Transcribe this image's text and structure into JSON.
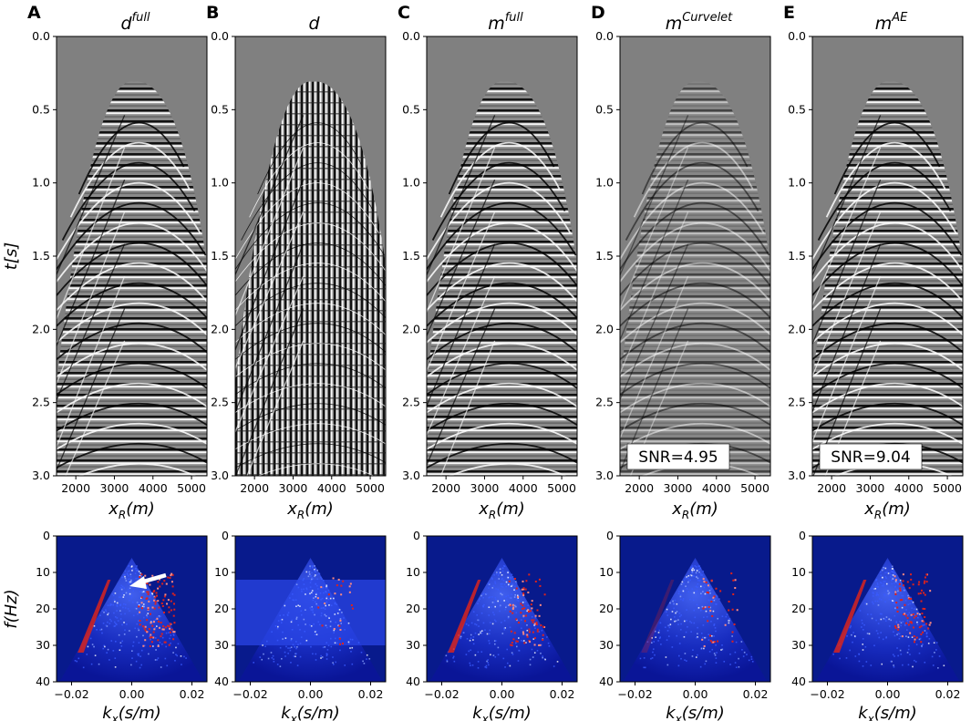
{
  "figure": {
    "panels": [
      {
        "letter": "A",
        "title_base": "d",
        "title_sup": "full",
        "snr": ""
      },
      {
        "letter": "B",
        "title_base": "d",
        "title_sup": "",
        "snr": ""
      },
      {
        "letter": "C",
        "title_base": "m",
        "title_sup": "full",
        "snr": ""
      },
      {
        "letter": "D",
        "title_base": "m",
        "title_sup": "Curvelet",
        "snr": "SNR=4.95"
      },
      {
        "letter": "E",
        "title_base": "m",
        "title_sup": "AE",
        "snr": "SNR=9.04"
      }
    ],
    "arrow_panel": "A"
  },
  "chart_data": [
    {
      "type": "heatmap",
      "name": "seismic shot gathers (time-space domain)",
      "panels": [
        "A",
        "B",
        "C",
        "D",
        "E"
      ],
      "xlabel_base": "x",
      "xlabel_sub": "R",
      "xlabel_unit": "(m)",
      "ylabel_base": "t",
      "ylabel_unit": "[s]",
      "xlim": [
        1500,
        5400
      ],
      "ylim": [
        3.0,
        0.0
      ],
      "xticks": [
        2000,
        3000,
        4000,
        5000
      ],
      "xtick_labels": [
        "2000",
        "3000",
        "4000",
        "5000"
      ],
      "yticks": [
        0.0,
        0.5,
        1.0,
        1.5,
        2.0,
        2.5,
        3.0
      ],
      "ytick_labels": [
        "0.0",
        "0.5",
        "1.0",
        "1.5",
        "2.0",
        "2.5",
        "3.0"
      ],
      "apex": {
        "x": 3500,
        "t": 0.31
      },
      "colormap": "gray",
      "snr": {
        "D": 4.95,
        "E": 9.04
      }
    },
    {
      "type": "heatmap",
      "name": "f-k amplitude spectra",
      "panels": [
        "A",
        "B",
        "C",
        "D",
        "E"
      ],
      "xlabel_base": "k",
      "xlabel_sub": "x",
      "xlabel_unit": "(s/m)",
      "ylabel_base": "f",
      "ylabel_unit": "(Hz)",
      "xlim": [
        -0.025,
        0.025
      ],
      "ylim": [
        40,
        0
      ],
      "xticks": [
        -0.02,
        0.0,
        0.02
      ],
      "xtick_labels": [
        "−0.02",
        "0.00",
        "0.02"
      ],
      "yticks": [
        0,
        10,
        20,
        30,
        40
      ],
      "ytick_labels": [
        "0",
        "10",
        "20",
        "30",
        "40"
      ],
      "colormap": "seismic"
    }
  ]
}
